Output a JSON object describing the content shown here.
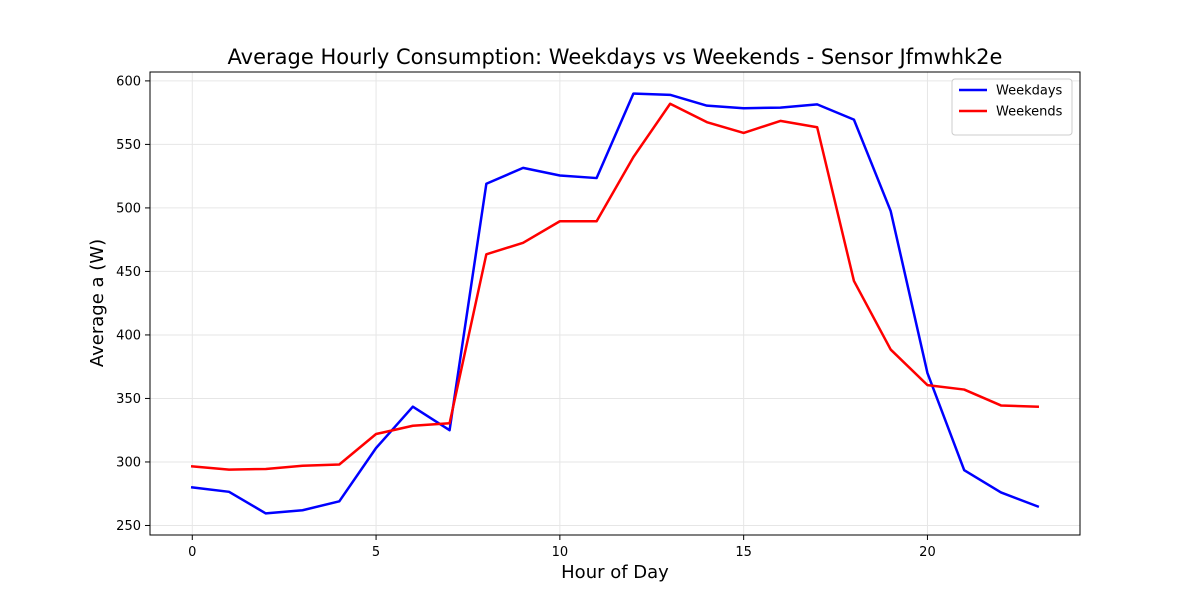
{
  "chart_data": {
    "type": "line",
    "title": "Average Hourly Consumption: Weekdays vs Weekends - Sensor Jfmwhk2e",
    "xlabel": "Hour of Day",
    "ylabel": "Average a (W)",
    "xlim": [
      -1.15,
      24.15
    ],
    "ylim": [
      242.5,
      607
    ],
    "xticks": [
      0,
      5,
      10,
      15,
      20
    ],
    "yticks": [
      250,
      300,
      350,
      400,
      450,
      500,
      550,
      600
    ],
    "grid": true,
    "legend_position": "top-right",
    "x": [
      0,
      1,
      2,
      3,
      4,
      5,
      6,
      7,
      8,
      9,
      10,
      11,
      12,
      13,
      14,
      15,
      16,
      17,
      18,
      19,
      20,
      21,
      22,
      23
    ],
    "series": [
      {
        "name": "Weekdays",
        "color": "#0000ff",
        "values": [
          280,
          276.5,
          259.5,
          262,
          269,
          311,
          343.5,
          325,
          519,
          531.5,
          525.5,
          523.5,
          590,
          589,
          580.5,
          578.5,
          579,
          581.5,
          569.5,
          497.5,
          370,
          293.5,
          276,
          265
        ]
      },
      {
        "name": "Weekends",
        "color": "#ff0000",
        "values": [
          296.5,
          294,
          294.5,
          297,
          298,
          322,
          328.5,
          330.5,
          463.5,
          472.5,
          489.5,
          489.5,
          540,
          582,
          567.5,
          559,
          568.5,
          563.5,
          442.5,
          388.5,
          360.5,
          357,
          344.5,
          343.5
        ]
      }
    ]
  }
}
